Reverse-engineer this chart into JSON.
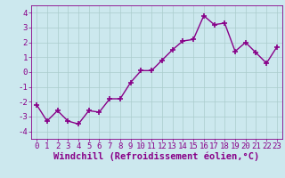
{
  "x": [
    0,
    1,
    2,
    3,
    4,
    5,
    6,
    7,
    8,
    9,
    10,
    11,
    12,
    13,
    14,
    15,
    16,
    17,
    18,
    19,
    20,
    21,
    22,
    23
  ],
  "y": [
    -2.2,
    -3.3,
    -2.6,
    -3.3,
    -3.5,
    -2.6,
    -2.7,
    -1.8,
    -1.8,
    -0.7,
    0.1,
    0.1,
    0.8,
    1.5,
    2.1,
    2.2,
    3.8,
    3.2,
    3.3,
    1.4,
    2.0,
    1.3,
    0.6,
    1.7
  ],
  "line_color": "#880088",
  "marker": "+",
  "marker_size": 4,
  "xlabel": "Windchill (Refroidissement éolien,°C)",
  "ylim": [
    -4.5,
    4.5
  ],
  "xlim": [
    -0.5,
    23.5
  ],
  "yticks": [
    -4,
    -3,
    -2,
    -1,
    0,
    1,
    2,
    3,
    4
  ],
  "xticks": [
    0,
    1,
    2,
    3,
    4,
    5,
    6,
    7,
    8,
    9,
    10,
    11,
    12,
    13,
    14,
    15,
    16,
    17,
    18,
    19,
    20,
    21,
    22,
    23
  ],
  "bg_color": "#cce8ee",
  "grid_color": "#aacccc",
  "xlabel_color": "#880088",
  "tick_color": "#880088",
  "xlabel_fontsize": 7.5,
  "tick_fontsize": 6.5,
  "linewidth": 1.0
}
